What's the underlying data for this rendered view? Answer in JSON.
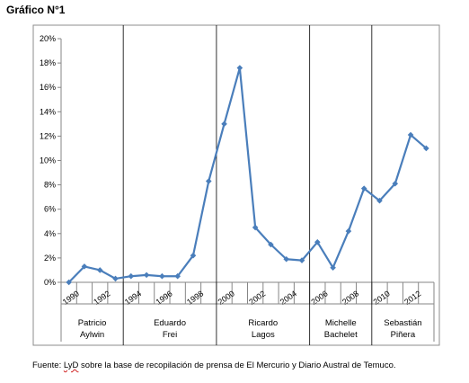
{
  "heading": "Gráfico N°1",
  "source": {
    "prefix": "Fuente: ",
    "lyd": "LyD",
    "rest": " sobre la base de recopilación de prensa de El Mercurio y Diario Austral de Temuco."
  },
  "chart_data": {
    "type": "line",
    "x": [
      1990,
      1991,
      1992,
      1993,
      1994,
      1995,
      1996,
      1997,
      1998,
      1999,
      2000,
      2001,
      2002,
      2003,
      2004,
      2005,
      2006,
      2007,
      2008,
      2009,
      2010,
      2011,
      2012,
      2013
    ],
    "x_tick_labels": [
      "1990",
      "1992",
      "1994",
      "1996",
      "1998",
      "2000",
      "2002",
      "2004",
      "2006",
      "2008",
      "2010",
      "2012"
    ],
    "y_ticks": [
      "0%",
      "2%",
      "4%",
      "6%",
      "8%",
      "10%",
      "12%",
      "14%",
      "16%",
      "18%",
      "20%"
    ],
    "ylim": [
      0,
      20
    ],
    "series": [
      {
        "values": [
          0.0,
          1.3,
          1.0,
          0.3,
          0.5,
          0.6,
          0.5,
          0.5,
          2.2,
          8.3,
          13.0,
          17.6,
          4.5,
          3.1,
          1.9,
          1.8,
          3.3,
          1.2,
          4.2,
          7.7,
          6.7,
          8.1,
          12.1,
          11.0
        ],
        "color": "#4a7ebb"
      }
    ],
    "periods": [
      {
        "line1": "Patricio",
        "line2": "Aylwin",
        "start": 1989.5,
        "end": 1993.5
      },
      {
        "line1": "Eduardo",
        "line2": "Frei",
        "start": 1993.5,
        "end": 1999.5
      },
      {
        "line1": "Ricardo",
        "line2": "Lagos",
        "start": 1999.5,
        "end": 2005.5
      },
      {
        "line1": "Michelle",
        "line2": "Bachelet",
        "start": 2005.5,
        "end": 2009.5
      },
      {
        "line1": "Sebastián",
        "line2": "Piñera",
        "start": 2009.5,
        "end": 2013.5
      }
    ],
    "grid": false,
    "legend": "none"
  }
}
